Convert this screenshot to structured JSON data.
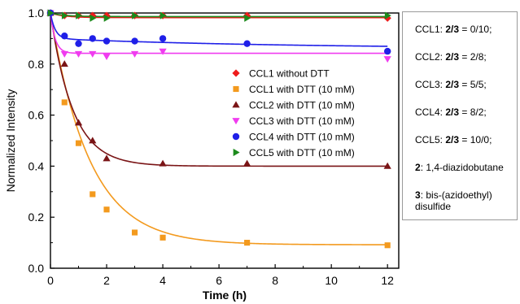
{
  "chart_data": {
    "type": "scatter",
    "xlabel": "Time (h)",
    "ylabel": "Normalized Intensity",
    "xlim": [
      0,
      12.4
    ],
    "ylim": [
      0.0,
      1.0
    ],
    "xticks": [
      "0",
      "2",
      "4",
      "6",
      "8",
      "10",
      "12"
    ],
    "yticks": [
      "0.0",
      "0.2",
      "0.4",
      "0.6",
      "0.8",
      "1.0"
    ],
    "legend_position": "center-right",
    "series": [
      {
        "name": "CCL1 without DTT",
        "color": "#ee1c1c",
        "marker": "diamond",
        "x": [
          0,
          0.5,
          1,
          1.5,
          2,
          3,
          4,
          7,
          12
        ],
        "y": [
          1.0,
          0.99,
          0.99,
          0.99,
          0.99,
          0.99,
          0.99,
          0.99,
          0.98
        ],
        "fit": {
          "a": 0.982,
          "b": 0.018,
          "k": 2.0
        }
      },
      {
        "name": "CCL1 with DTT (10 mM)",
        "color": "#f39a1e",
        "marker": "square",
        "x": [
          0,
          0.5,
          1,
          1.5,
          2,
          3,
          4,
          7,
          12
        ],
        "y": [
          1.0,
          0.65,
          0.49,
          0.29,
          0.23,
          0.14,
          0.12,
          0.1,
          0.09
        ],
        "fit": {
          "a": 0.092,
          "b": 0.908,
          "k": 0.72
        }
      },
      {
        "name": "CCL2 with DTT (10 mM)",
        "color": "#7a1416",
        "marker": "triangle-up",
        "x": [
          0,
          0.5,
          1,
          1.5,
          2,
          4,
          7,
          12
        ],
        "y": [
          1.0,
          0.8,
          0.57,
          0.5,
          0.43,
          0.41,
          0.41,
          0.4
        ],
        "fit": {
          "a": 0.4,
          "b": 0.6,
          "k": 1.25
        }
      },
      {
        "name": "CCL3 with DTT (10 mM)",
        "color": "#f03cef",
        "marker": "triangle-down",
        "x": [
          0,
          0.5,
          1,
          1.5,
          2,
          3,
          4,
          12
        ],
        "y": [
          1.0,
          0.84,
          0.84,
          0.84,
          0.83,
          0.84,
          0.85,
          0.82
        ],
        "fit": {
          "a": 0.842,
          "b": 0.158,
          "k": 6.0
        }
      },
      {
        "name": "CCL4 with DTT (10 mM)",
        "color": "#1f1fe8",
        "marker": "circle",
        "x": [
          0,
          0.5,
          1,
          1.5,
          2,
          3,
          4,
          7,
          12
        ],
        "y": [
          1.0,
          0.91,
          0.88,
          0.9,
          0.89,
          0.89,
          0.9,
          0.88,
          0.85
        ],
        "fit": {
          "a": 0.86,
          "b": 0.04,
          "k": 0.12,
          "c": 0.1,
          "k2": 6.0
        }
      },
      {
        "name": "CCL5 with DTT (10 mM)",
        "color": "#1c8a1c",
        "marker": "triangle-right",
        "x": [
          0,
          0.5,
          1,
          1.5,
          2,
          3,
          4,
          7,
          12
        ],
        "y": [
          1.0,
          0.99,
          0.99,
          0.98,
          0.98,
          0.99,
          0.99,
          0.98,
          0.99
        ],
        "fit": {
          "a": 0.986,
          "b": 0.014,
          "k": 2.0
        }
      }
    ]
  },
  "side_panel": {
    "lines": [
      {
        "prefix": "CCL1: ",
        "bold": "2/3",
        "suffix": " = 0/10;"
      },
      {
        "prefix": "CCL2: ",
        "bold": "2/3",
        "suffix": " = 2/8;"
      },
      {
        "prefix": "CCL3: ",
        "bold": "2/3",
        "suffix": " = 5/5;"
      },
      {
        "prefix": "CCL4: ",
        "bold": "2/3",
        "suffix": " = 8/2;"
      },
      {
        "prefix": "CCL5: ",
        "bold": "2/3",
        "suffix": " = 10/0;"
      },
      {
        "prefix": "",
        "bold": "2",
        "suffix": ": 1,4-diazidobutane"
      },
      {
        "prefix": "",
        "bold": "3",
        "suffix": ": bis-(azidoethyl)"
      },
      {
        "prefix": "",
        "bold": "",
        "suffix": "disulfide"
      }
    ]
  }
}
